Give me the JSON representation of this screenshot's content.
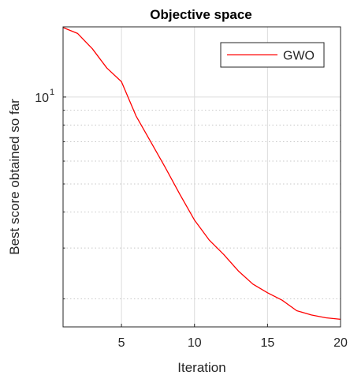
{
  "chart_data": {
    "type": "line",
    "title": "Objective space",
    "xlabel": "Iteration",
    "ylabel": "Best score obtained so far",
    "xlim": [
      1,
      20
    ],
    "ylim": [
      1.6,
      17.5
    ],
    "yscale": "log",
    "x_ticks": [
      5,
      10,
      15,
      20
    ],
    "y_ticks": [
      {
        "value": 10,
        "base": "10",
        "exp": "1"
      }
    ],
    "y_minor_ticks": [
      2,
      3,
      4,
      5,
      6,
      7,
      8,
      9
    ],
    "grid": true,
    "legend_position": "top-right",
    "series": [
      {
        "name": "GWO",
        "color": "#ff0000",
        "x": [
          1,
          2,
          3,
          4,
          5,
          6,
          7,
          8,
          9,
          10,
          11,
          12,
          13,
          14,
          15,
          16,
          17,
          18,
          19,
          20
        ],
        "y": [
          17.4,
          16.6,
          14.7,
          12.6,
          11.3,
          8.6,
          7.0,
          5.7,
          4.6,
          3.75,
          3.2,
          2.85,
          2.5,
          2.25,
          2.1,
          1.98,
          1.82,
          1.76,
          1.72,
          1.7
        ]
      }
    ]
  }
}
